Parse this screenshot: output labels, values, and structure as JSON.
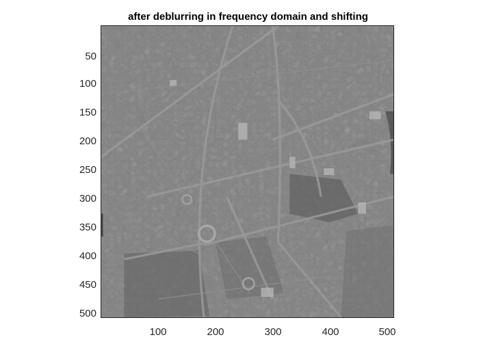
{
  "figure": {
    "title": "after deblurring in frequency domain and shifting"
  },
  "image": {
    "description_kind": "grayscale aerial photograph",
    "colormap": "gray"
  },
  "axes": {
    "y_ticks": [
      "50",
      "100",
      "150",
      "200",
      "250",
      "300",
      "350",
      "400",
      "450",
      "500"
    ],
    "x_ticks": [
      "100",
      "200",
      "300",
      "400",
      "500"
    ],
    "xlim": [
      0.5,
      512.5
    ],
    "ylim": [
      0.5,
      512.5
    ],
    "y_direction": "reverse"
  }
}
